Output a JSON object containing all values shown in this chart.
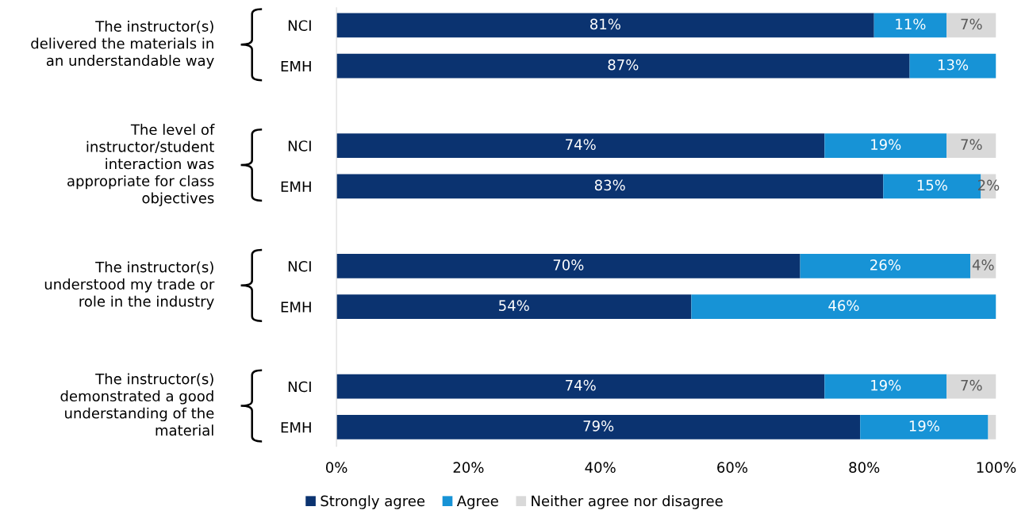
{
  "chart_data": {
    "type": "bar",
    "orientation": "horizontal",
    "stacked": true,
    "categories": [
      "NCI",
      "EMH",
      "NCI",
      "EMH",
      "NCI",
      "EMH",
      "NCI",
      "EMH"
    ],
    "series": [
      {
        "name": "Strongly agree",
        "color": "#0b3370",
        "values": [
          81.5,
          86.9,
          74.0,
          82.9,
          70.3,
          53.8,
          74.0,
          79.4
        ],
        "value_labels": [
          "81%",
          "87%",
          "74%",
          "83%",
          "70%",
          "54%",
          "74%",
          "79%"
        ]
      },
      {
        "name": "Agree",
        "color": "#1793d6",
        "values": [
          11.0,
          13.1,
          18.5,
          14.8,
          25.8,
          46.2,
          18.5,
          19.4
        ],
        "value_labels": [
          "11%",
          "13%",
          "19%",
          "15%",
          "26%",
          "46%",
          "19%",
          "19%"
        ]
      },
      {
        "name": "Neither agree nor disagree",
        "color": "#d9d9d9",
        "values": [
          7.5,
          null,
          7.5,
          2.3,
          3.9,
          null,
          7.5,
          1.2
        ],
        "value_labels": [
          "7%",
          null,
          "7%",
          "2%",
          "4%",
          null,
          "7%",
          null
        ]
      }
    ],
    "annotations": [
      "The instructor(s)\ndelivered the materials in\nan understandable way",
      "The level of\ninstructor/student\ninteraction was\nappropriate for class\nobjectives",
      "The instructor(s)\nunderstood my trade or\nrole in the industry",
      "The instructor(s)\ndemonstrated a good\nunderstanding of the\nmaterial"
    ],
    "xlim": [
      0,
      100
    ],
    "xticks": [
      {
        "value": 0,
        "label": "0%"
      },
      {
        "value": 20,
        "label": "20%"
      },
      {
        "value": 40,
        "label": "40%"
      },
      {
        "value": 60,
        "label": "60%"
      },
      {
        "value": 80,
        "label": "80%"
      },
      {
        "value": 100,
        "label": "100%"
      }
    ],
    "legend": "bottom",
    "grid": false
  }
}
